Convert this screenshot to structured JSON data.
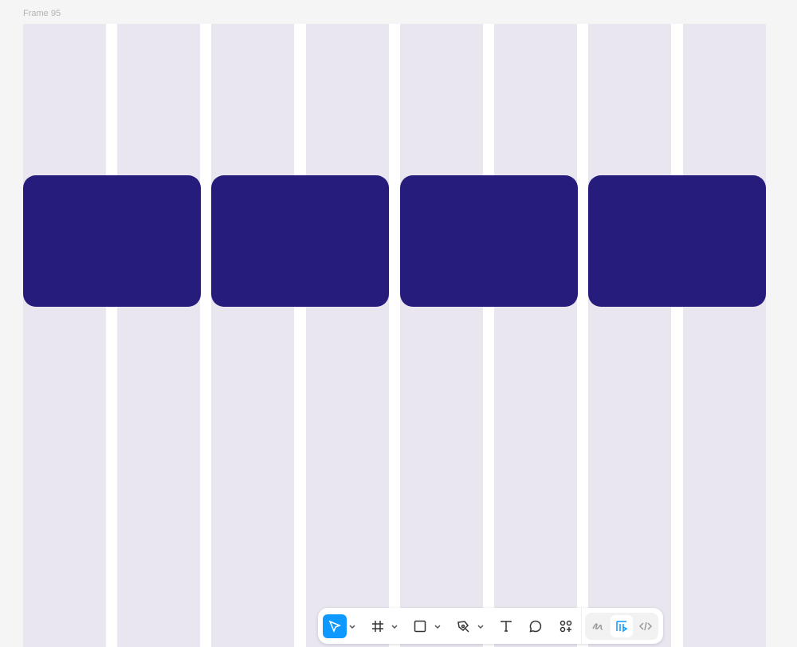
{
  "canvas": {
    "frame_label": "Frame 95",
    "column_color": "#e9e6f0",
    "card_color": "#261c7b",
    "columns": 8,
    "cards": 4
  },
  "toolbar": {
    "tools": [
      {
        "name": "move",
        "icon": "cursor-icon",
        "selected": true,
        "has_menu": true
      },
      {
        "name": "frame",
        "icon": "hash-frame-icon",
        "has_menu": true
      },
      {
        "name": "shape",
        "icon": "rectangle-icon",
        "has_menu": true
      },
      {
        "name": "pen",
        "icon": "pen-icon",
        "has_menu": true
      },
      {
        "name": "text",
        "icon": "text-icon"
      },
      {
        "name": "comment",
        "icon": "comment-icon"
      },
      {
        "name": "actions",
        "icon": "components-icon"
      }
    ],
    "modes": [
      {
        "name": "draw",
        "icon": "draw-icon"
      },
      {
        "name": "design",
        "icon": "design-icon",
        "active": true
      },
      {
        "name": "dev",
        "icon": "code-icon"
      }
    ],
    "accent": "#0d99ff"
  }
}
